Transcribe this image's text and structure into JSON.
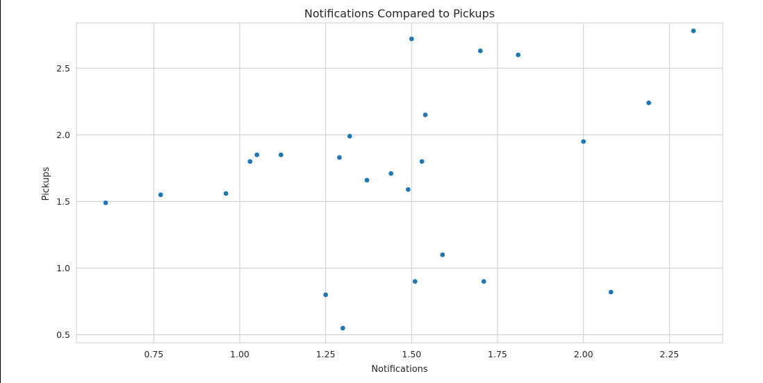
{
  "chart_data": {
    "type": "scatter",
    "title": "Notifications Compared to Pickups",
    "xlabel": "Notifications",
    "ylabel": "Pickups",
    "xlim": [
      0.525,
      2.405
    ],
    "ylim": [
      0.44,
      2.84
    ],
    "xticks": [
      "0.75",
      "1.00",
      "1.25",
      "1.50",
      "1.75",
      "2.00",
      "2.25"
    ],
    "yticks": [
      "0.5",
      "1.0",
      "1.5",
      "2.0",
      "2.5"
    ],
    "grid": true,
    "marker_color": "#1f77b4",
    "grid_color": "#cccccc",
    "points": [
      {
        "x": 0.61,
        "y": 1.49
      },
      {
        "x": 0.77,
        "y": 1.55
      },
      {
        "x": 0.96,
        "y": 1.56
      },
      {
        "x": 1.03,
        "y": 1.8
      },
      {
        "x": 1.05,
        "y": 1.85
      },
      {
        "x": 1.12,
        "y": 1.85
      },
      {
        "x": 1.25,
        "y": 0.8
      },
      {
        "x": 1.29,
        "y": 1.83
      },
      {
        "x": 1.3,
        "y": 0.55
      },
      {
        "x": 1.32,
        "y": 1.99
      },
      {
        "x": 1.37,
        "y": 1.66
      },
      {
        "x": 1.44,
        "y": 1.71
      },
      {
        "x": 1.49,
        "y": 1.59
      },
      {
        "x": 1.5,
        "y": 2.72
      },
      {
        "x": 1.51,
        "y": 0.9
      },
      {
        "x": 1.53,
        "y": 1.8
      },
      {
        "x": 1.54,
        "y": 2.15
      },
      {
        "x": 1.59,
        "y": 1.1
      },
      {
        "x": 1.7,
        "y": 2.63
      },
      {
        "x": 1.71,
        "y": 0.9
      },
      {
        "x": 1.81,
        "y": 2.6
      },
      {
        "x": 2.0,
        "y": 1.95
      },
      {
        "x": 2.08,
        "y": 0.82
      },
      {
        "x": 2.19,
        "y": 2.24
      },
      {
        "x": 2.32,
        "y": 2.78
      }
    ]
  }
}
